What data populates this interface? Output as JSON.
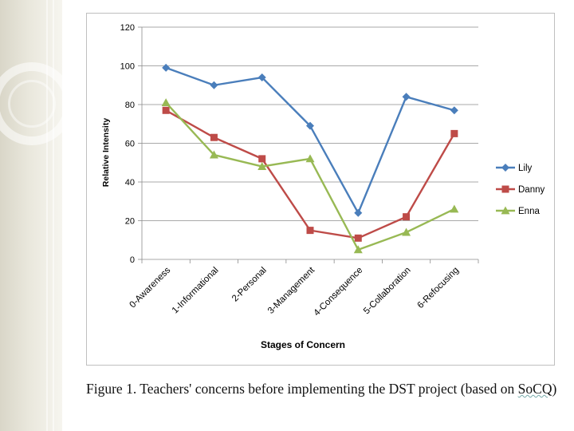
{
  "chart_data": {
    "type": "line",
    "title": "",
    "xlabel": "Stages  of Concern",
    "ylabel": "Relative Intensity",
    "categories": [
      "0-Awareness",
      "1-Informational",
      "2-Personal",
      "3-Management",
      "4-Consequence",
      "5-Collaboration",
      "6-Refocusing"
    ],
    "ylim": [
      0,
      120
    ],
    "yticks": [
      0,
      20,
      40,
      60,
      80,
      100,
      120
    ],
    "grid": true,
    "legend_position": "right",
    "series": [
      {
        "name": "Lily",
        "color": "#4a7ebb",
        "marker": "diamond",
        "values": [
          99,
          90,
          94,
          69,
          24,
          84,
          77
        ]
      },
      {
        "name": "Danny",
        "color": "#be4b48",
        "marker": "square",
        "values": [
          77,
          63,
          52,
          15,
          11,
          22,
          65
        ]
      },
      {
        "name": "Enna",
        "color": "#98b954",
        "marker": "triangle",
        "values": [
          81,
          54,
          48,
          52,
          5,
          14,
          26
        ]
      }
    ]
  },
  "caption": {
    "prefix": "Figure 1. Teachers' concerns before implementing the DST project (based on ",
    "underlined": "SoCQ",
    "suffix": ")"
  }
}
